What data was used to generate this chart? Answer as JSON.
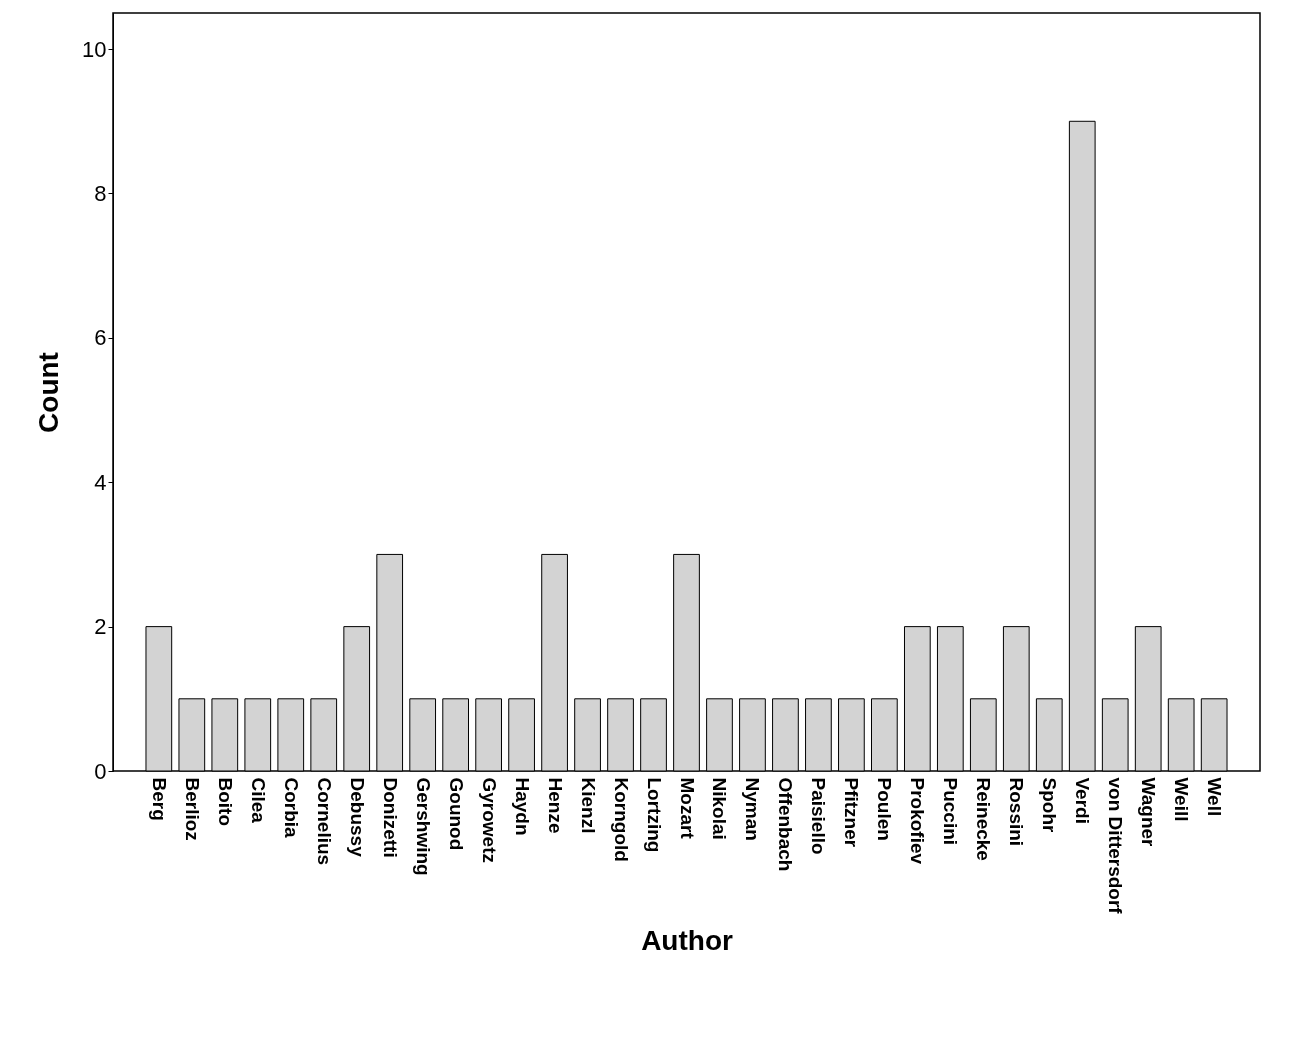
{
  "chart_data": {
    "type": "bar",
    "xlabel": "Author",
    "ylabel": "Count",
    "categories": [
      "Berg",
      "Berlioz",
      "Boito",
      "Cilea",
      "Corbia",
      "Cornelius",
      "Debussy",
      "Donizetti",
      "Gershwing",
      "Gounod",
      "Gyrowetz",
      "Haydn",
      "Henze",
      "Kienzl",
      "Korngold",
      "Lortzing",
      "Mozart",
      "Nikolai",
      "Nyman",
      "Offenbach",
      "Paisiello",
      "Pfitzner",
      "Poulen",
      "Prokofiev",
      "Puccini",
      "Reinecke",
      "Rossini",
      "Spohr",
      "Verdi",
      "von Dittersdorf",
      "Wagner",
      "Weill",
      "Well"
    ],
    "values": [
      2,
      1,
      1,
      1,
      1,
      1,
      2,
      3,
      1,
      1,
      1,
      1,
      3,
      1,
      1,
      1,
      3,
      1,
      1,
      1,
      1,
      1,
      1,
      2,
      2,
      1,
      2,
      1,
      9,
      1,
      2,
      1,
      1
    ],
    "color": "#d3d3d3",
    "ylim": [
      0,
      10.5
    ],
    "yticks": [
      0,
      2,
      4,
      6,
      8,
      10
    ],
    "grid": false
  }
}
